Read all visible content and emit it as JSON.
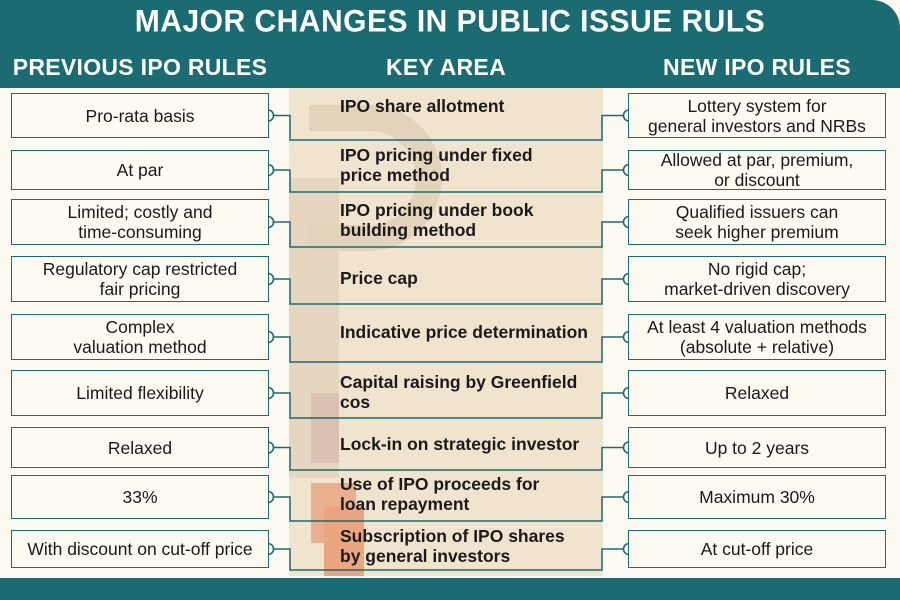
{
  "title": "MAJOR CHANGES IN PUBLIC ISSUE RULS",
  "headers": {
    "previous": "PREVIOUS IPO RULES",
    "key": "KEY AREA",
    "new": "NEW IPO RULES"
  },
  "colors": {
    "accent": "#1b6b72",
    "panel": "#f1e4cf",
    "background": "#fdfaf2"
  },
  "rows": [
    {
      "previous": "Pro-rata basis",
      "key": "IPO share allotment",
      "new": "Lottery system for\ngeneral investors and NRBs"
    },
    {
      "previous": "At par",
      "key": "IPO pricing under fixed\nprice method",
      "new": "Allowed at par, premium,\nor discount"
    },
    {
      "previous": "Limited; costly and\ntime-consuming",
      "key": "IPO pricing under book\nbuilding method",
      "new": "Qualified issuers can\nseek higher premium"
    },
    {
      "previous": "Regulatory cap restricted\nfair pricing",
      "key": "Price cap",
      "new": "No rigid cap;\nmarket-driven discovery"
    },
    {
      "previous": "Complex\nvaluation method",
      "key": "Indicative price determination",
      "new": "At least 4 valuation methods\n(absolute + relative)"
    },
    {
      "previous": "Limited flexibility",
      "key": "Capital raising by Greenfield cos",
      "new": "Relaxed"
    },
    {
      "previous": "Relaxed",
      "key": "Lock-in on strategic investor",
      "new": "Up to 2 years"
    },
    {
      "previous": "33%",
      "key": "Use of IPO proceeds for\nloan repayment",
      "new": "Maximum 30%"
    },
    {
      "previous": "With discount on cut-off price",
      "key": "Subscription of IPO shares\nby general investors",
      "new": "At cut-off price"
    }
  ]
}
